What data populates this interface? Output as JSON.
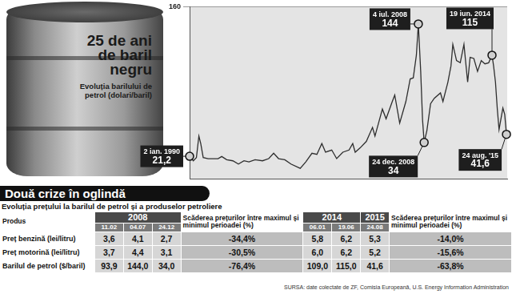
{
  "chart_data": {
    "type": "line",
    "title": "25 de ani de baril negru",
    "subtitle": "Evoluția barilului de petrol (dolari/baril)",
    "x": [
      1990.0,
      1990.3,
      1990.55,
      1990.75,
      1990.9,
      1991.1,
      1991.5,
      1991.9,
      1992.3,
      1992.6,
      1993.0,
      1993.5,
      1993.95,
      1994.4,
      1994.8,
      1995.3,
      1995.9,
      1996.4,
      1996.8,
      1997.2,
      1997.7,
      1998.2,
      1998.95,
      1999.4,
      1999.9,
      2000.3,
      2000.7,
      2001.0,
      2001.5,
      2001.9,
      2002.4,
      2002.9,
      2003.2,
      2003.4,
      2003.8,
      2004.3,
      2004.8,
      2005.0,
      2005.6,
      2005.9,
      2006.4,
      2006.6,
      2007.0,
      2007.5,
      2007.85,
      2008.1,
      2008.35,
      2008.51,
      2008.7,
      2008.85,
      2008.98,
      2009.2,
      2009.5,
      2009.8,
      2010.3,
      2010.5,
      2010.9,
      2011.15,
      2011.3,
      2011.6,
      2011.9,
      2012.2,
      2012.5,
      2012.7,
      2013.0,
      2013.3,
      2013.6,
      2013.9,
      2014.2,
      2014.47,
      2014.6,
      2014.75,
      2014.9,
      2015.04,
      2015.35,
      2015.5,
      2015.64
    ],
    "values": [
      21.2,
      17,
      20,
      40,
      33,
      20,
      19,
      19,
      19,
      21,
      18,
      17,
      14,
      17,
      16,
      18,
      17,
      19,
      24,
      19,
      18,
      14,
      10,
      16,
      24,
      23,
      33,
      25,
      27,
      19,
      25,
      27,
      33,
      25,
      29,
      35,
      48,
      40,
      65,
      56,
      72,
      78,
      52,
      72,
      93,
      94,
      115,
      144,
      100,
      55,
      34,
      45,
      70,
      75,
      80,
      72,
      90,
      105,
      125,
      110,
      108,
      125,
      90,
      113,
      112,
      100,
      110,
      107,
      108,
      115,
      105,
      90,
      65,
      46,
      66,
      60,
      41.6
    ],
    "color": "#2e2e2e",
    "marker": "none",
    "xlim": [
      1990,
      2015.7
    ],
    "ylim": [
      0,
      160
    ],
    "yticks": [
      160
    ],
    "grid": true,
    "tick_labels": "y",
    "annotations": [
      {
        "x": 1990.0,
        "y": 21.2,
        "date": "2 ian. 1990",
        "label": "21,2"
      },
      {
        "x": 2008.51,
        "y": 144,
        "date": "4 iul. 2008",
        "label": "144"
      },
      {
        "x": 2008.98,
        "y": 34,
        "date": "24 dec. 2008",
        "label": "34"
      },
      {
        "x": 2014.47,
        "y": 115,
        "date": "19 iun. 2014",
        "label": "115"
      },
      {
        "x": 2015.64,
        "y": 41.6,
        "date": "24 aug. '15",
        "label": "41,6"
      }
    ]
  },
  "header": {
    "title": "Două crize în oglindă",
    "subtitle": "Evoluția prețului la barilul de petrol și a produselor petroliere"
  },
  "table": {
    "product_header": "Produs",
    "periods": [
      {
        "years": [
          {
            "year": "2008",
            "dates": [
              "11.02",
              "04.07",
              "24.12"
            ]
          }
        ],
        "change_header": "Scăderea prețurilor între maximul și minimul perioadei (%)"
      },
      {
        "years": [
          {
            "year": "2014",
            "dates": [
              "06.01",
              "19.06"
            ]
          },
          {
            "year": "2015",
            "dates": [
              "24.08"
            ]
          }
        ],
        "change_header": "Scăderea prețurilor între maximul și minimul perioadei (%)"
      }
    ],
    "rows": [
      {
        "product": "Preț benzină (lei/litru)",
        "cells": [
          [
            "3,6",
            "4,1",
            "2,7",
            "-34,4%"
          ],
          [
            "5,8",
            "6,2",
            "5,3",
            "-14,0%"
          ]
        ]
      },
      {
        "product": "Preț motorină (lei/litru)",
        "cells": [
          [
            "3,7",
            "4,4",
            "3,1",
            "-30,5%"
          ],
          [
            "6,0",
            "6,2",
            "5,2",
            "-15,6%"
          ]
        ]
      },
      {
        "product": "Barilul de petrol ($/baril)",
        "cells": [
          [
            "93,9",
            "144,0",
            "34,0",
            "-76,4%"
          ],
          [
            "109,0",
            "115,0",
            "41,6",
            "-63,8%"
          ]
        ]
      }
    ]
  },
  "source": "SURSA: date colectate de ZF, Comisia Europeană, U.S. Energy Information Administration"
}
